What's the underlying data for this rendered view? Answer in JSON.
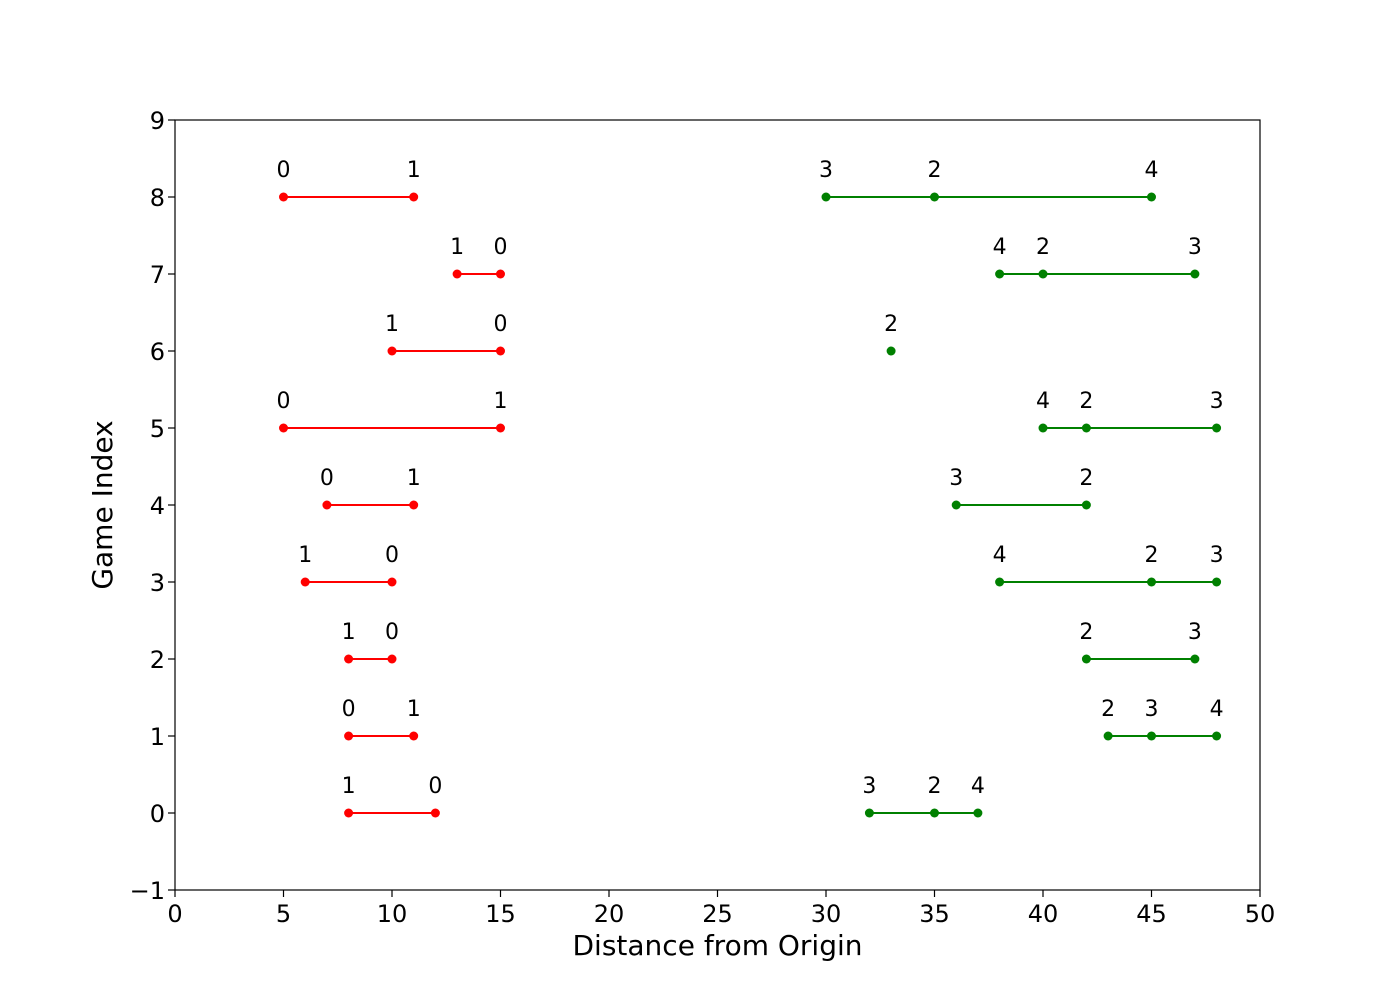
{
  "chart_data": {
    "type": "scatter",
    "title": "",
    "xlabel": "Distance from Origin",
    "ylabel": "Game Index",
    "xlim": [
      0,
      50
    ],
    "ylim": [
      -1,
      9
    ],
    "xticks": [
      "0",
      "5",
      "10",
      "15",
      "20",
      "25",
      "30",
      "35",
      "40",
      "45",
      "50"
    ],
    "yticks": [
      "−1",
      "0",
      "1",
      "2",
      "3",
      "4",
      "5",
      "6",
      "7",
      "8",
      "9"
    ],
    "grid": false,
    "colors": {
      "red": "#ff0000",
      "green": "#008000"
    },
    "games": [
      {
        "index": 0,
        "red": [
          {
            "x": 8,
            "label": "1"
          },
          {
            "x": 12,
            "label": "0"
          }
        ],
        "green": [
          {
            "x": 32,
            "label": "3"
          },
          {
            "x": 35,
            "label": "2"
          },
          {
            "x": 37,
            "label": "4"
          }
        ]
      },
      {
        "index": 1,
        "red": [
          {
            "x": 8,
            "label": "0"
          },
          {
            "x": 11,
            "label": "1"
          }
        ],
        "green": [
          {
            "x": 43,
            "label": "2"
          },
          {
            "x": 45,
            "label": "3"
          },
          {
            "x": 48,
            "label": "4"
          }
        ]
      },
      {
        "index": 2,
        "red": [
          {
            "x": 8,
            "label": "1"
          },
          {
            "x": 10,
            "label": "0"
          }
        ],
        "green": [
          {
            "x": 42,
            "label": "2"
          },
          {
            "x": 47,
            "label": "3"
          }
        ]
      },
      {
        "index": 3,
        "red": [
          {
            "x": 6,
            "label": "1"
          },
          {
            "x": 10,
            "label": "0"
          }
        ],
        "green": [
          {
            "x": 38,
            "label": "4"
          },
          {
            "x": 45,
            "label": "2"
          },
          {
            "x": 48,
            "label": "3"
          }
        ]
      },
      {
        "index": 4,
        "red": [
          {
            "x": 7,
            "label": "0"
          },
          {
            "x": 11,
            "label": "1"
          }
        ],
        "green": [
          {
            "x": 36,
            "label": "3"
          },
          {
            "x": 42,
            "label": "2"
          }
        ]
      },
      {
        "index": 5,
        "red": [
          {
            "x": 5,
            "label": "0"
          },
          {
            "x": 15,
            "label": "1"
          }
        ],
        "green": [
          {
            "x": 40,
            "label": "4"
          },
          {
            "x": 42,
            "label": "2"
          },
          {
            "x": 48,
            "label": "3"
          }
        ]
      },
      {
        "index": 6,
        "red": [
          {
            "x": 10,
            "label": "1"
          },
          {
            "x": 15,
            "label": "0"
          }
        ],
        "green": [
          {
            "x": 33,
            "label": "2"
          }
        ]
      },
      {
        "index": 7,
        "red": [
          {
            "x": 13,
            "label": "1"
          },
          {
            "x": 15,
            "label": "0"
          }
        ],
        "green": [
          {
            "x": 38,
            "label": "4"
          },
          {
            "x": 40,
            "label": "2"
          },
          {
            "x": 47,
            "label": "3"
          }
        ]
      },
      {
        "index": 8,
        "red": [
          {
            "x": 5,
            "label": "0"
          },
          {
            "x": 11,
            "label": "1"
          }
        ],
        "green": [
          {
            "x": 30,
            "label": "3"
          },
          {
            "x": 35,
            "label": "2"
          },
          {
            "x": 45,
            "label": "4"
          }
        ]
      }
    ]
  }
}
